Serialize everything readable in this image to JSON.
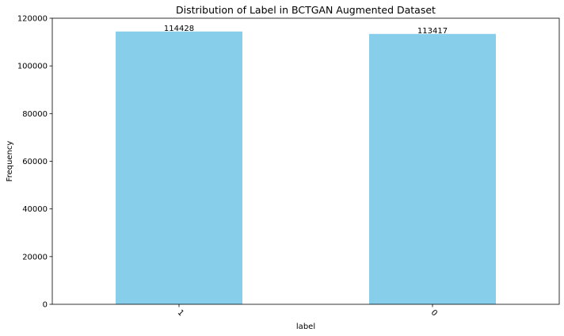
{
  "chart_data": {
    "type": "bar",
    "title": "Distribution of Label in BCTGAN Augmented Dataset",
    "xlabel": "label",
    "ylabel": "Frequency",
    "categories": [
      "1",
      "0"
    ],
    "values": [
      114428,
      113417
    ],
    "value_labels": [
      "114428",
      "113417"
    ],
    "ylim": [
      0,
      120000
    ],
    "yticks": [
      0,
      20000,
      40000,
      60000,
      80000,
      100000,
      120000
    ],
    "ytick_labels": [
      "0",
      "20000",
      "40000",
      "60000",
      "80000",
      "100000",
      "120000"
    ],
    "bar_color": "#87CEEB",
    "x_tick_rotation_deg": 45,
    "grid": false,
    "legend": "none"
  }
}
